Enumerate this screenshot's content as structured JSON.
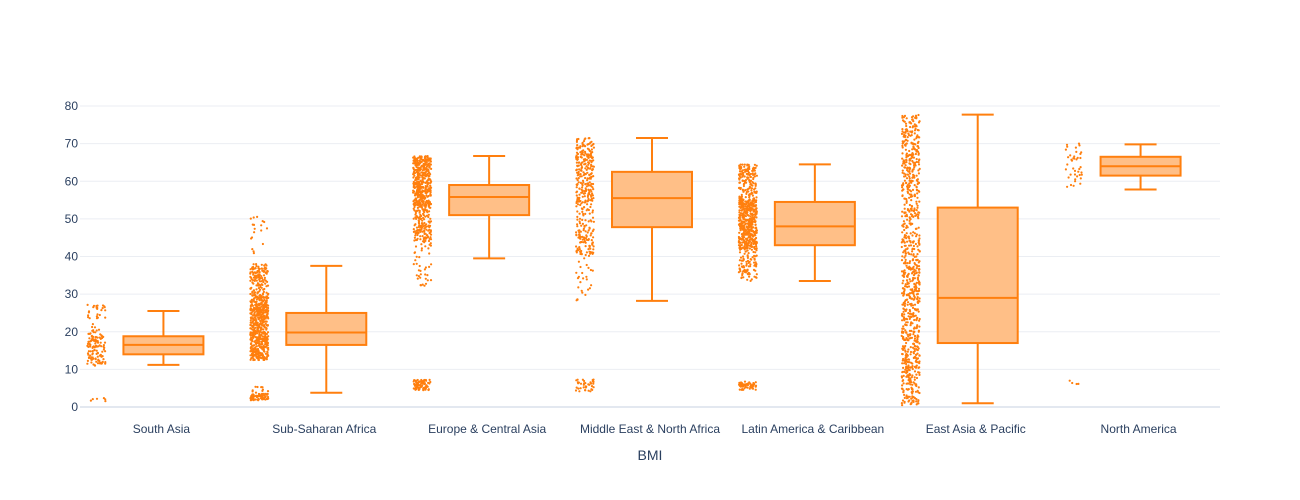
{
  "chart_data": {
    "type": "box",
    "title": "",
    "xlabel": "BMI",
    "ylabel": "",
    "ylim": [
      0,
      80
    ],
    "yticks": [
      0,
      10,
      20,
      30,
      40,
      50,
      60,
      70,
      80
    ],
    "grid": true,
    "legend": "none",
    "colors": {
      "series": "#ff7f0e",
      "box_fill": "#ffbf87",
      "grid": "#ebeef3",
      "text": "#2a3f5f"
    },
    "categories": [
      "South Asia",
      "Sub-Saharan Africa",
      "Europe & Central Asia",
      "Middle East & North Africa",
      "Latin America & Caribbean",
      "East Asia & Pacific",
      "North America"
    ],
    "boxes": [
      {
        "category": "South Asia",
        "min": 11.2,
        "q1": 14.0,
        "median": 16.5,
        "q3": 18.8,
        "max": 25.5
      },
      {
        "category": "Sub-Saharan Africa",
        "min": 3.8,
        "q1": 16.5,
        "median": 19.8,
        "q3": 25.0,
        "max": 37.5
      },
      {
        "category": "Europe & Central Asia",
        "min": 39.5,
        "q1": 51.0,
        "median": 55.8,
        "q3": 59.0,
        "max": 66.7
      },
      {
        "category": "Middle East & North Africa",
        "min": 28.2,
        "q1": 47.8,
        "median": 55.5,
        "q3": 62.5,
        "max": 71.5
      },
      {
        "category": "Latin America & Caribbean",
        "min": 33.5,
        "q1": 43.0,
        "median": 48.0,
        "q3": 54.5,
        "max": 64.5
      },
      {
        "category": "East Asia & Pacific",
        "min": 1.0,
        "q1": 17.0,
        "median": 29.0,
        "q3": 53.0,
        "max": 77.7
      },
      {
        "category": "North America",
        "min": 57.8,
        "q1": 61.5,
        "median": 64.0,
        "q3": 66.5,
        "max": 69.8
      }
    ],
    "points": [
      {
        "category": "South Asia",
        "clusters": [
          {
            "low": 1.5,
            "high": 2.5,
            "n": 6
          },
          {
            "low": 11.0,
            "high": 19.5,
            "n": 110
          },
          {
            "low": 19.5,
            "high": 27.5,
            "n": 35
          }
        ]
      },
      {
        "category": "Sub-Saharan Africa",
        "clusters": [
          {
            "low": 1.8,
            "high": 3.5,
            "n": 70
          },
          {
            "low": 3.5,
            "high": 5.5,
            "n": 10
          },
          {
            "low": 12.5,
            "high": 30.5,
            "n": 600
          },
          {
            "low": 30.5,
            "high": 38.0,
            "n": 120
          },
          {
            "low": 40.0,
            "high": 51.5,
            "n": 18
          }
        ]
      },
      {
        "category": "Europe & Central Asia",
        "clusters": [
          {
            "low": 4.5,
            "high": 7.2,
            "n": 90
          },
          {
            "low": 31.0,
            "high": 44.0,
            "n": 40
          },
          {
            "low": 44.0,
            "high": 53.0,
            "n": 140
          },
          {
            "low": 53.0,
            "high": 66.7,
            "n": 420
          }
        ]
      },
      {
        "category": "Middle East & North Africa",
        "clusters": [
          {
            "low": 4.0,
            "high": 7.5,
            "n": 40
          },
          {
            "low": 28.0,
            "high": 40.0,
            "n": 25
          },
          {
            "low": 40.0,
            "high": 55.0,
            "n": 140
          },
          {
            "low": 55.0,
            "high": 71.5,
            "n": 230
          }
        ]
      },
      {
        "category": "Latin America & Caribbean",
        "clusters": [
          {
            "low": 4.5,
            "high": 6.8,
            "n": 60
          },
          {
            "low": 33.5,
            "high": 42.0,
            "n": 90
          },
          {
            "low": 42.0,
            "high": 55.0,
            "n": 420
          },
          {
            "low": 55.0,
            "high": 64.5,
            "n": 160
          }
        ]
      },
      {
        "category": "East Asia & Pacific",
        "clusters": [
          {
            "low": 0.5,
            "high": 10.0,
            "n": 110
          },
          {
            "low": 10.0,
            "high": 35.0,
            "n": 330
          },
          {
            "low": 35.0,
            "high": 55.0,
            "n": 200
          },
          {
            "low": 55.0,
            "high": 77.7,
            "n": 260
          }
        ]
      },
      {
        "category": "North America",
        "clusters": [
          {
            "low": 6.0,
            "high": 7.0,
            "n": 4
          },
          {
            "low": 57.8,
            "high": 70.0,
            "n": 40
          }
        ]
      }
    ]
  }
}
